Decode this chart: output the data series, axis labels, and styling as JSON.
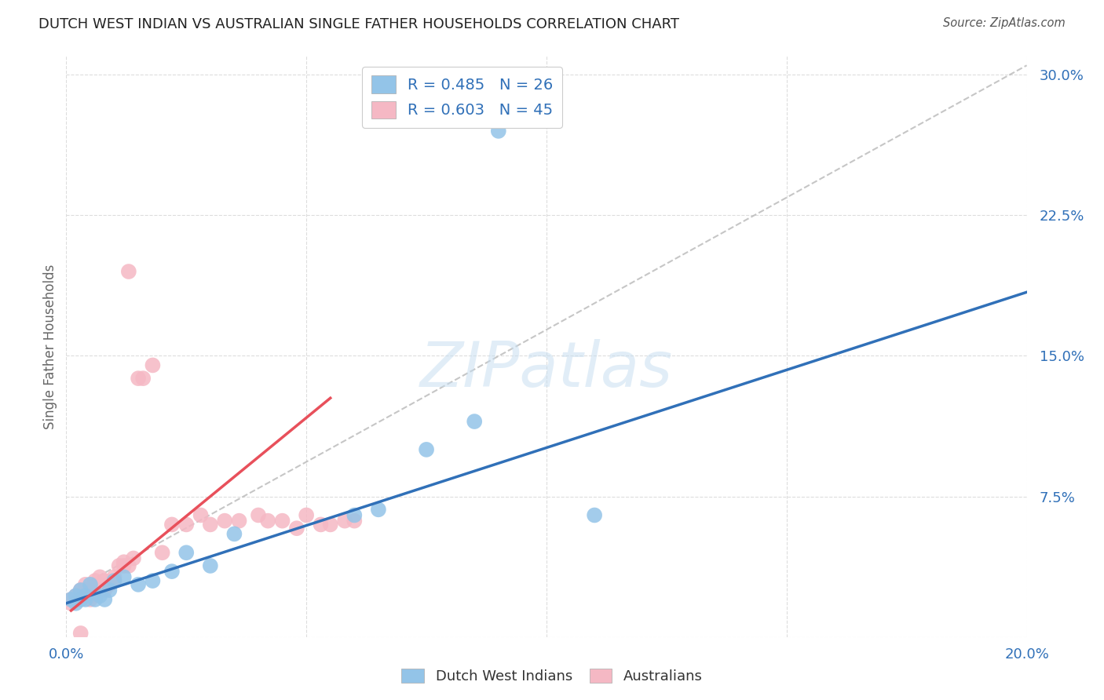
{
  "title": "DUTCH WEST INDIAN VS AUSTRALIAN SINGLE FATHER HOUSEHOLDS CORRELATION CHART",
  "source": "Source: ZipAtlas.com",
  "ylabel": "Single Father Households",
  "xlim": [
    0.0,
    0.2
  ],
  "ylim": [
    0.0,
    0.31
  ],
  "yticks": [
    0.0,
    0.075,
    0.15,
    0.225,
    0.3
  ],
  "ytick_labels": [
    "",
    "7.5%",
    "15.0%",
    "22.5%",
    "30.0%"
  ],
  "xticks": [
    0.0,
    0.05,
    0.1,
    0.15,
    0.2
  ],
  "xtick_labels": [
    "0.0%",
    "",
    "",
    "",
    "20.0%"
  ],
  "watermark": "ZIPatlas",
  "blue_R": 0.485,
  "blue_N": 26,
  "pink_R": 0.603,
  "pink_N": 45,
  "blue_color": "#93c4e8",
  "pink_color": "#f5b8c4",
  "blue_line_color": "#3070b8",
  "pink_line_color": "#e8505b",
  "dashed_line_color": "#b8b8b8",
  "blue_scatter_x": [
    0.001,
    0.002,
    0.002,
    0.003,
    0.003,
    0.004,
    0.004,
    0.005,
    0.006,
    0.007,
    0.008,
    0.009,
    0.01,
    0.012,
    0.015,
    0.018,
    0.022,
    0.025,
    0.03,
    0.035,
    0.06,
    0.065,
    0.075,
    0.085,
    0.09,
    0.11
  ],
  "blue_scatter_y": [
    0.02,
    0.018,
    0.022,
    0.025,
    0.02,
    0.022,
    0.02,
    0.028,
    0.02,
    0.022,
    0.02,
    0.025,
    0.03,
    0.032,
    0.028,
    0.03,
    0.035,
    0.045,
    0.038,
    0.055,
    0.065,
    0.068,
    0.1,
    0.115,
    0.27,
    0.065
  ],
  "pink_scatter_x": [
    0.001,
    0.001,
    0.002,
    0.002,
    0.003,
    0.003,
    0.004,
    0.004,
    0.005,
    0.005,
    0.006,
    0.006,
    0.007,
    0.007,
    0.008,
    0.008,
    0.009,
    0.01,
    0.01,
    0.011,
    0.012,
    0.012,
    0.013,
    0.014,
    0.015,
    0.016,
    0.018,
    0.02,
    0.022,
    0.025,
    0.028,
    0.03,
    0.033,
    0.036,
    0.04,
    0.042,
    0.045,
    0.048,
    0.05,
    0.053,
    0.055,
    0.058,
    0.06,
    0.013,
    0.003
  ],
  "pink_scatter_y": [
    0.018,
    0.02,
    0.02,
    0.022,
    0.022,
    0.025,
    0.025,
    0.028,
    0.02,
    0.022,
    0.025,
    0.03,
    0.028,
    0.032,
    0.025,
    0.03,
    0.028,
    0.03,
    0.032,
    0.038,
    0.038,
    0.04,
    0.038,
    0.042,
    0.138,
    0.138,
    0.145,
    0.045,
    0.06,
    0.06,
    0.065,
    0.06,
    0.062,
    0.062,
    0.065,
    0.062,
    0.062,
    0.058,
    0.065,
    0.06,
    0.06,
    0.062,
    0.062,
    0.195,
    0.002
  ],
  "blue_line_x": [
    0.0,
    0.2
  ],
  "blue_line_y_intercept": 0.018,
  "blue_line_slope": 0.83,
  "pink_line_x_start": 0.001,
  "pink_line_x_end": 0.055,
  "pink_line_y_intercept": 0.012,
  "pink_line_slope": 2.1,
  "dashed_line_x": [
    0.005,
    0.2
  ],
  "dashed_line_y": [
    0.03,
    0.305
  ],
  "background_color": "#ffffff",
  "grid_color": "#dddddd",
  "title_color": "#222222",
  "tick_color": "#3070b8"
}
